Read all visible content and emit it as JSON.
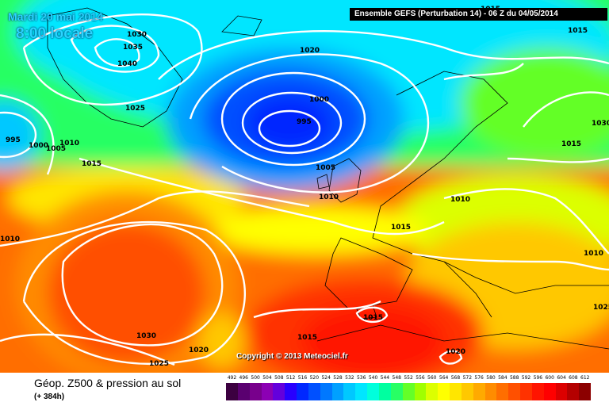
{
  "header": {
    "date": "Mardi 20 mai 2014",
    "time": "8:00 locale",
    "run_info": "Ensemble GEFS (Perturbation 14)  -  06 Z du 04/05/2014"
  },
  "copyright": "Copyright © 2013 Meteociel.fr",
  "footer": {
    "title": "Géop. Z500 & pression au sol",
    "subtitle": "(+ 384h)"
  },
  "legend": {
    "values": [
      "492",
      "496",
      "500",
      "504",
      "508",
      "512",
      "516",
      "520",
      "524",
      "528",
      "532",
      "536",
      "540",
      "544",
      "548",
      "552",
      "556",
      "560",
      "564",
      "568",
      "572",
      "576",
      "580",
      "584",
      "588",
      "592",
      "596",
      "600",
      "604",
      "608",
      "612"
    ],
    "colors": [
      "#3c0040",
      "#5a0070",
      "#78008c",
      "#8c00b4",
      "#6400dc",
      "#2800ff",
      "#0028ff",
      "#0050ff",
      "#0078ff",
      "#00a0ff",
      "#00c8ff",
      "#00e6ff",
      "#00ffdc",
      "#00ffa0",
      "#28ff64",
      "#64ff28",
      "#a0ff00",
      "#dcff00",
      "#ffff00",
      "#ffe600",
      "#ffc800",
      "#ffaa00",
      "#ff8c00",
      "#ff6e00",
      "#ff5000",
      "#ff3200",
      "#ff1400",
      "#ff0000",
      "#dc0000",
      "#b40000",
      "#8c0000"
    ]
  },
  "isobar_labels": [
    "1030",
    "1035",
    "1040",
    "1025",
    "1020",
    "1000",
    "995",
    "995",
    "1000",
    "1005",
    "1010",
    "1015",
    "1005",
    "1010",
    "1015",
    "1010",
    "1015",
    "1010",
    "1015",
    "1030",
    "1025",
    "1010",
    "1015",
    "1015",
    "1020",
    "1030",
    "1025",
    "1020",
    "1015"
  ]
}
